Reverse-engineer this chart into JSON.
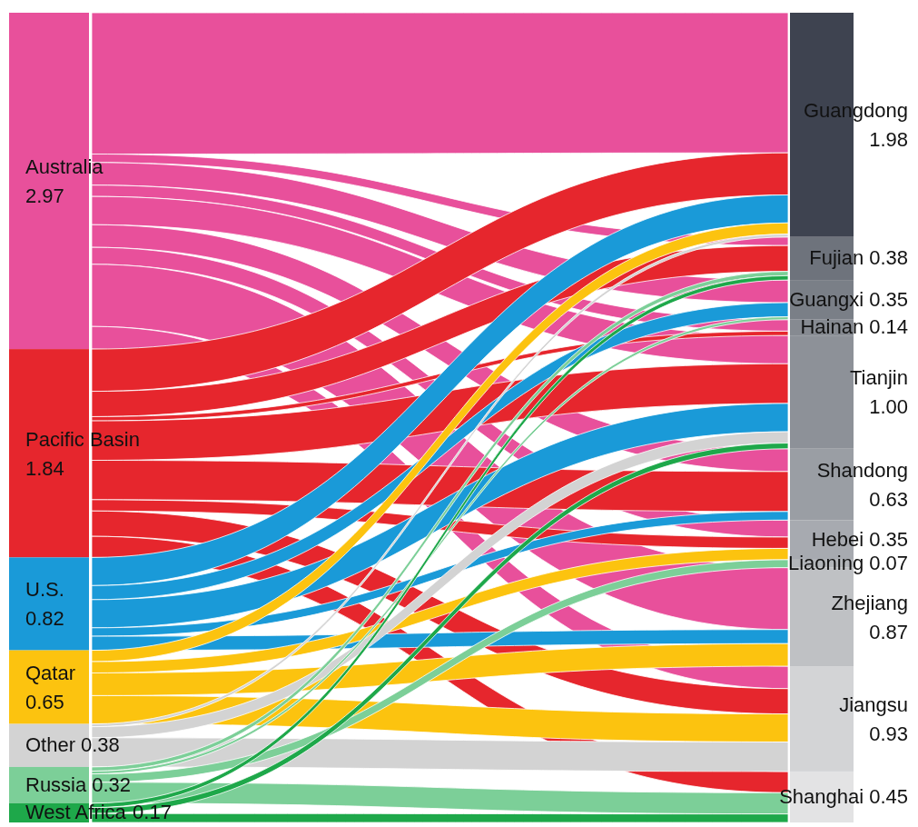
{
  "chart_data": {
    "type": "other",
    "categories": [
      "Australia",
      "Pacific Basin",
      "U.S.",
      "Qatar",
      "Other",
      "Russia",
      "West Africa",
      "Guangdong",
      "Fujian",
      "Guangxi",
      "Hainan",
      "Tianjin",
      "Shandong",
      "Hebei",
      "Liaoning",
      "Zhejiang",
      "Jiangsu",
      "Shanghai"
    ],
    "values": [
      2.97,
      1.84,
      0.82,
      0.65,
      0.38,
      0.32,
      0.17,
      1.98,
      0.38,
      0.35,
      0.14,
      1.0,
      0.63,
      0.35,
      0.07,
      0.87,
      0.93,
      0.45
    ],
    "value_labels": [
      "2.97",
      "1.84",
      "0.82",
      "0.65",
      "0.38",
      "0.32",
      "0.17",
      "1.98",
      "0.38",
      "0.35",
      "0.14",
      "1.00",
      "0.63",
      "0.35",
      "0.07",
      "0.87",
      "0.93",
      "0.45"
    ],
    "colors": [
      "#e8509b",
      "#e6262d",
      "#1a9ad8",
      "#fcc30f",
      "#d3d3d3",
      "#7ccf98",
      "#1ea84a",
      "#3e4350",
      "#6e737c",
      "#7a7f87",
      "#868a91",
      "#8d9198",
      "#9a9ea4",
      "#a7aab0",
      "#b3b6ba",
      "#bfc1c4",
      "#d3d4d6",
      "#e3e3e4"
    ]
  }
}
